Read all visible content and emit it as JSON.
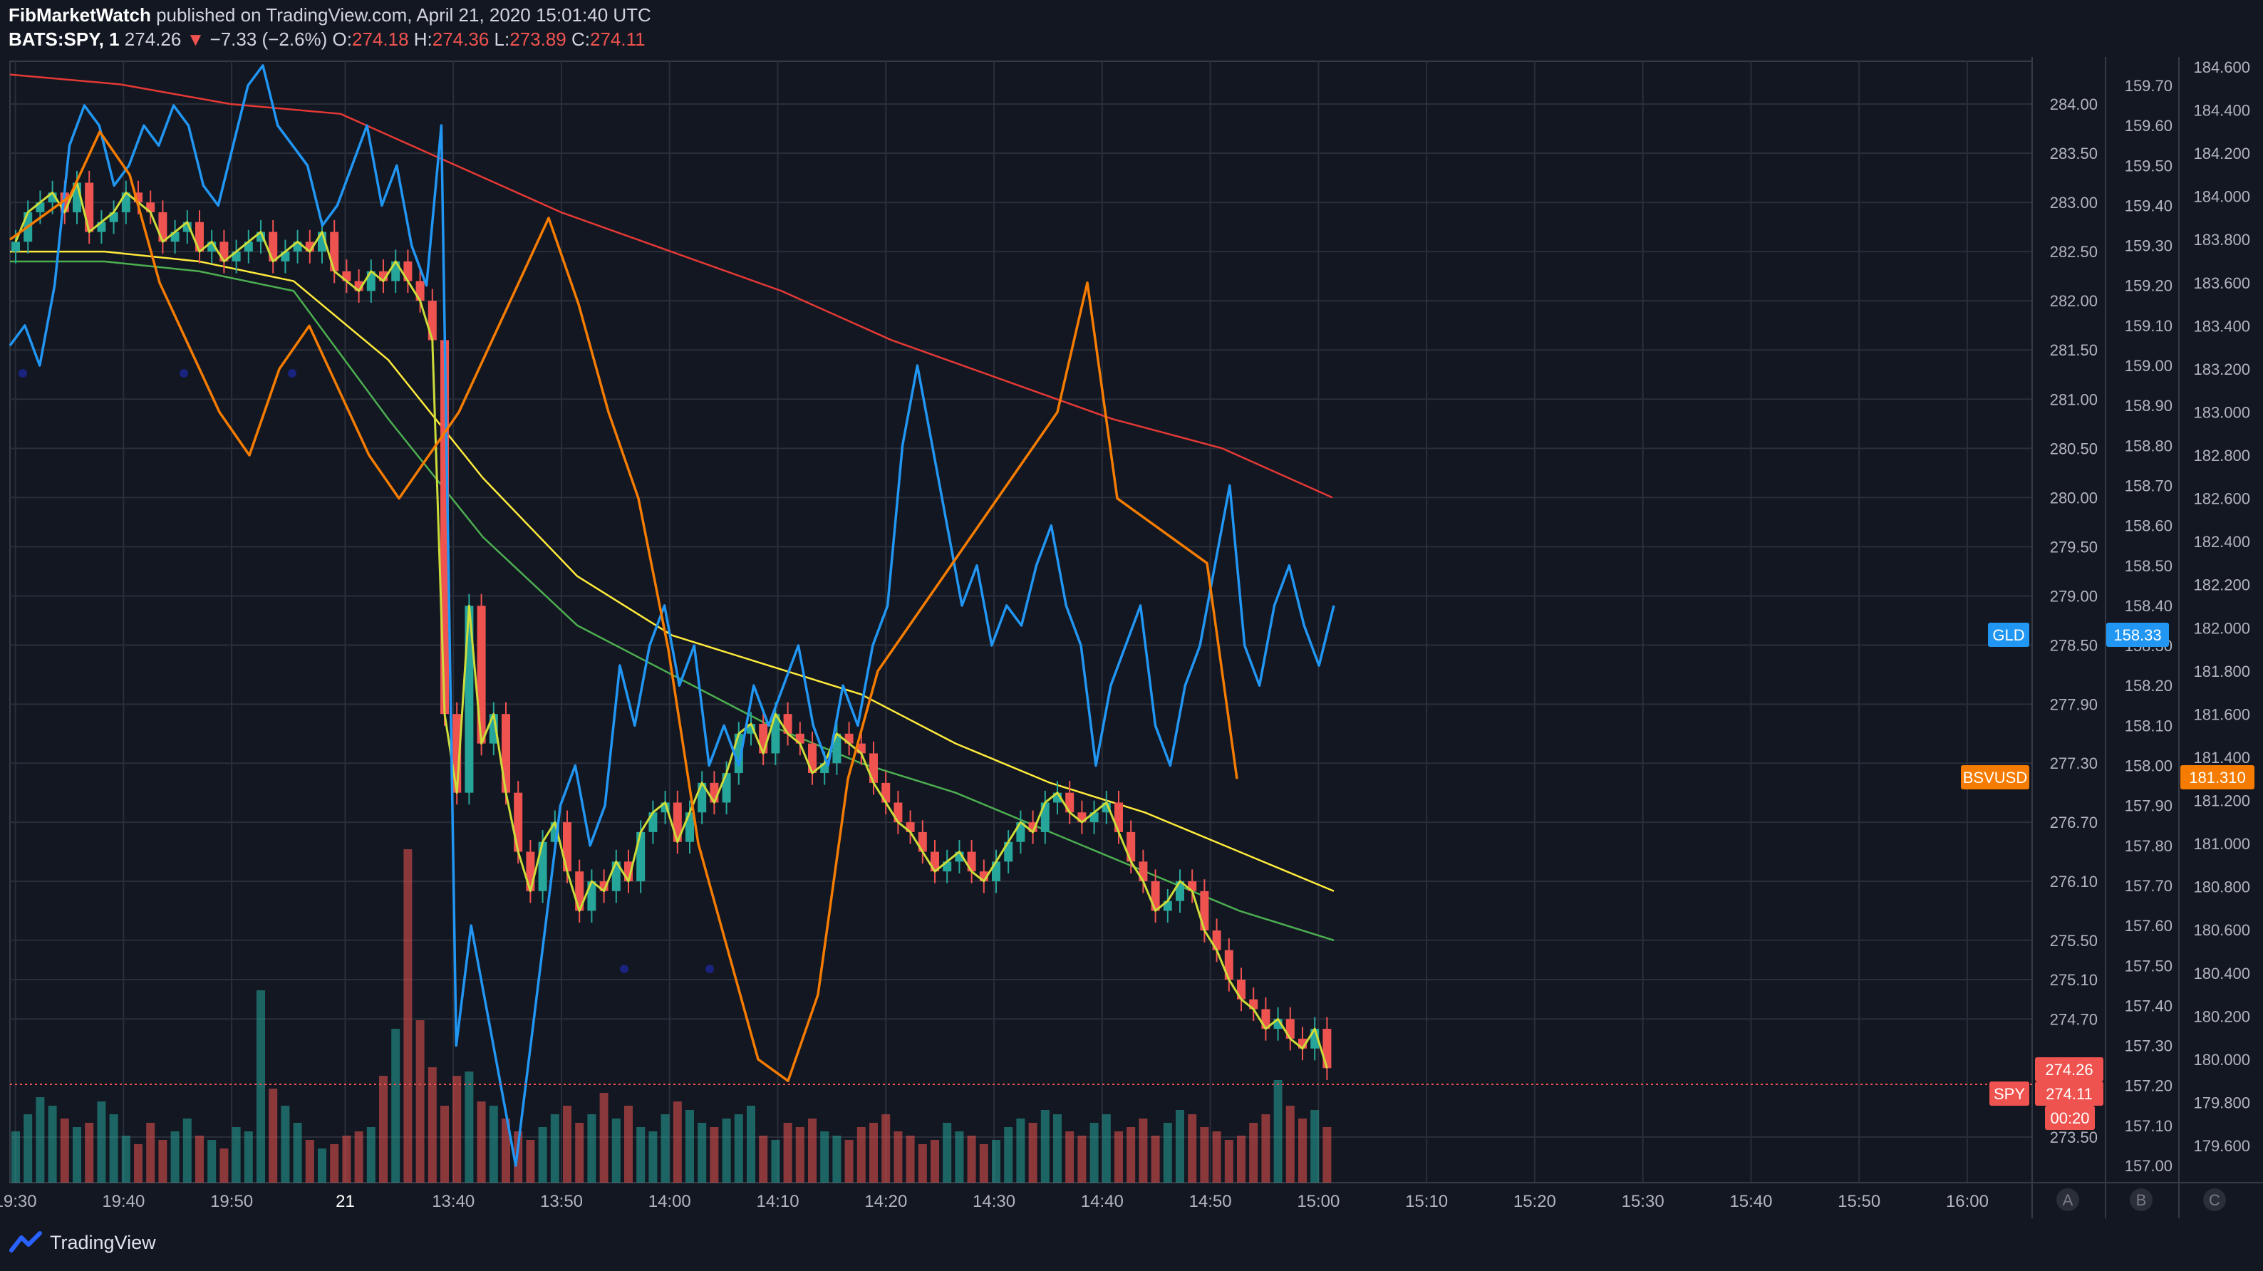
{
  "header": {
    "author": "FibMarketWatch",
    "published": "published on TradingView.com, April 21, 2020 15:01:40 UTC",
    "symbol": "BATS:SPY, 1",
    "last": "274.26",
    "arrow": "▼",
    "change": "−7.33 (−2.6%)",
    "o_label": "O:",
    "o_val": "274.18",
    "h_label": "H:",
    "h_val": "274.36",
    "l_label": "L:",
    "l_val": "273.89",
    "c_label": "C:",
    "c_val": "274.11"
  },
  "footer": {
    "brand": "TradingView"
  },
  "colors": {
    "bg": "#131722",
    "grid": "#2a2e39",
    "up": "#26a69a",
    "down": "#ef5350",
    "gld": "#2196f3",
    "bsv": "#f57c00",
    "yellow": "#ffeb3b",
    "green": "#4caf50",
    "red_ma": "#e53935",
    "yellow_line": "#cddc39",
    "dot": "#1a237e"
  },
  "chart_data": {
    "type": "line",
    "title": "BATS:SPY, 1",
    "x_ticks": [
      "19:30",
      "19:40",
      "19:50",
      "21",
      "13:40",
      "13:50",
      "14:00",
      "14:10",
      "14:20",
      "14:30",
      "14:40",
      "14:50",
      "15:00",
      "15:10",
      "15:20",
      "15:30",
      "15:40",
      "15:50",
      "16:00"
    ],
    "x_tick_pos": [
      0.5,
      10.5,
      20.5,
      31,
      41,
      51,
      61,
      71,
      81,
      91,
      101,
      111,
      121,
      131,
      141,
      151,
      161,
      171,
      181
    ],
    "x_range": [
      0,
      187
    ],
    "axes": {
      "spy": {
        "range": [
          273.5,
          284.0
        ],
        "ticks": [
          "284.00",
          "283.50",
          "283.00",
          "282.50",
          "282.00",
          "281.50",
          "281.00",
          "280.50",
          "280.00",
          "279.50",
          "279.00",
          "278.50",
          "277.90",
          "277.30",
          "276.70",
          "276.10",
          "275.50",
          "275.10",
          "274.70",
          "273.50"
        ]
      },
      "gld": {
        "range": [
          157.0,
          159.7
        ],
        "ticks": [
          "159.70",
          "159.60",
          "159.50",
          "159.40",
          "159.30",
          "159.20",
          "159.10",
          "159.00",
          "158.90",
          "158.80",
          "158.70",
          "158.60",
          "158.50",
          "158.40",
          "158.30",
          "158.20",
          "158.10",
          "158.00",
          "157.90",
          "157.80",
          "157.70",
          "157.60",
          "157.50",
          "157.40",
          "157.30",
          "157.20",
          "157.10",
          "157.00"
        ]
      },
      "bsv": {
        "range": [
          179.6,
          184.6
        ],
        "ticks": [
          "184.600",
          "184.400",
          "184.200",
          "184.000",
          "183.800",
          "183.600",
          "183.400",
          "183.200",
          "183.000",
          "182.800",
          "182.600",
          "182.400",
          "182.200",
          "182.000",
          "181.800",
          "181.600",
          "181.400",
          "181.200",
          "181.000",
          "180.800",
          "180.600",
          "180.400",
          "180.200",
          "180.000",
          "179.800",
          "179.600"
        ]
      }
    },
    "panel_labels": [
      "A",
      "B",
      "C"
    ],
    "price_tags": [
      {
        "label": "GLD",
        "value": "158.33"
      },
      {
        "label": "BSVUSD",
        "value": "181.310"
      },
      {
        "label": "SPY",
        "value": "274.11",
        "value2": "274.26",
        "countdown": "00:20"
      }
    ],
    "series": [
      {
        "name": "SPY",
        "color": "#ef5350",
        "values": [
          282.6,
          282.9,
          283.0,
          283.1,
          282.9,
          283.2,
          282.7,
          282.8,
          282.9,
          283.1,
          283.0,
          282.9,
          282.6,
          282.7,
          282.8,
          282.5,
          282.6,
          282.4,
          282.5,
          282.6,
          282.7,
          282.4,
          282.5,
          282.6,
          282.5,
          282.7,
          282.3,
          282.2,
          282.1,
          282.3,
          282.2,
          282.4,
          282.2,
          282.0,
          281.6,
          277.8,
          277.0,
          278.9,
          277.5,
          277.8,
          277.0,
          276.4,
          276.0,
          276.5,
          276.7,
          276.2,
          275.8,
          276.1,
          276.0,
          276.3,
          276.1,
          276.6,
          276.8,
          276.9,
          276.5,
          276.8,
          277.1,
          276.9,
          277.2,
          277.6,
          277.7,
          277.4,
          277.8,
          277.6,
          277.5,
          277.2,
          277.3,
          277.6,
          277.5,
          277.4,
          277.1,
          276.9,
          276.7,
          276.6,
          276.4,
          276.2,
          276.3,
          276.4,
          276.2,
          276.1,
          276.3,
          276.5,
          276.7,
          276.6,
          276.9,
          277.0,
          276.8,
          276.7,
          276.8,
          276.9,
          276.6,
          276.3,
          276.1,
          275.8,
          275.9,
          276.1,
          276.0,
          275.6,
          275.4,
          275.1,
          274.9,
          274.8,
          274.6,
          274.7,
          274.5,
          274.4,
          274.6,
          274.2
        ],
        "volume": [
          1.2,
          1.6,
          2.0,
          1.8,
          1.5,
          1.3,
          1.4,
          1.9,
          1.6,
          1.1,
          0.9,
          1.4,
          1.0,
          1.2,
          1.5,
          1.1,
          1.0,
          0.8,
          1.3,
          1.2,
          4.5,
          2.2,
          1.8,
          1.4,
          1.0,
          0.8,
          0.9,
          1.1,
          1.2,
          1.3,
          2.5,
          3.6,
          7.8,
          3.8,
          2.7,
          1.8,
          2.5,
          2.6,
          1.9,
          1.8,
          1.5,
          1.2,
          1.0,
          1.3,
          1.6,
          1.8,
          1.4,
          1.6,
          2.1,
          1.5,
          1.8,
          1.3,
          1.2,
          1.6,
          1.9,
          1.7,
          1.4,
          1.3,
          1.5,
          1.6,
          1.8,
          1.1,
          1.0,
          1.4,
          1.3,
          1.5,
          1.2,
          1.1,
          1.0,
          1.3,
          1.4,
          1.6,
          1.2,
          1.1,
          0.9,
          1.0,
          1.4,
          1.2,
          1.1,
          0.9,
          1.0,
          1.3,
          1.5,
          1.4,
          1.7,
          1.6,
          1.2,
          1.1,
          1.4,
          1.6,
          1.2,
          1.3,
          1.5,
          1.1,
          1.4,
          1.7,
          1.6,
          1.3,
          1.2,
          1.0,
          1.1,
          1.4,
          1.6,
          2.4,
          1.8,
          1.5,
          1.7,
          1.3
        ]
      },
      {
        "name": "GLD",
        "color": "#2196f3",
        "values": [
          159.05,
          159.1,
          159.0,
          159.2,
          159.55,
          159.65,
          159.6,
          159.45,
          159.5,
          159.6,
          159.55,
          159.65,
          159.6,
          159.45,
          159.4,
          159.55,
          159.7,
          159.75,
          159.6,
          159.55,
          159.5,
          159.35,
          159.4,
          159.5,
          159.6,
          159.4,
          159.5,
          159.3,
          159.2,
          159.6,
          157.3,
          157.6,
          157.4,
          157.2,
          157.0,
          157.3,
          157.6,
          157.9,
          158.0,
          157.8,
          157.9,
          158.25,
          158.1,
          158.3,
          158.4,
          158.2,
          158.3,
          158.0,
          158.1,
          158.0,
          158.2,
          158.1,
          158.2,
          158.3,
          158.1,
          158.0,
          158.2,
          158.1,
          158.3,
          158.4,
          158.8,
          159.0,
          158.8,
          158.6,
          158.4,
          158.5,
          158.3,
          158.4,
          158.35,
          158.5,
          158.6,
          158.4,
          158.3,
          158.0,
          158.2,
          158.3,
          158.4,
          158.1,
          158.0,
          158.2,
          158.3,
          158.5,
          158.7,
          158.3,
          158.2,
          158.4,
          158.5,
          158.35,
          158.25,
          158.4
        ]
      },
      {
        "name": "BSVUSD",
        "color": "#f57c00",
        "values": [
          183.8,
          183.9,
          184.0,
          184.3,
          184.1,
          183.6,
          183.3,
          183.0,
          182.8,
          183.2,
          183.4,
          183.1,
          182.8,
          182.6,
          182.8,
          183.0,
          183.3,
          183.6,
          183.9,
          183.5,
          183.0,
          182.6,
          181.9,
          181.0,
          180.5,
          180.0,
          179.9,
          180.3,
          181.3,
          181.8,
          182.0,
          182.2,
          182.4,
          182.6,
          182.8,
          183.0,
          183.6,
          182.6,
          182.5,
          182.4,
          182.3,
          181.3
        ]
      },
      {
        "name": "MA-fast-yellow",
        "color": "#ffeb3b",
        "values": [
          282.5,
          282.5,
          282.4,
          282.2,
          281.4,
          280.2,
          279.2,
          278.6,
          278.3,
          278.0,
          277.5,
          277.1,
          276.8,
          276.4,
          276.0
        ]
      },
      {
        "name": "MA-green",
        "color": "#4caf50",
        "values": [
          282.4,
          282.4,
          282.3,
          282.1,
          280.8,
          279.6,
          278.7,
          278.2,
          277.7,
          277.3,
          277.0,
          276.6,
          276.2,
          275.8,
          275.5
        ]
      },
      {
        "name": "MA-red",
        "color": "#e53935",
        "values": [
          284.3,
          284.2,
          284.0,
          283.9,
          283.4,
          282.9,
          282.5,
          282.1,
          281.6,
          281.2,
          280.8,
          280.5,
          280.0
        ]
      }
    ]
  }
}
